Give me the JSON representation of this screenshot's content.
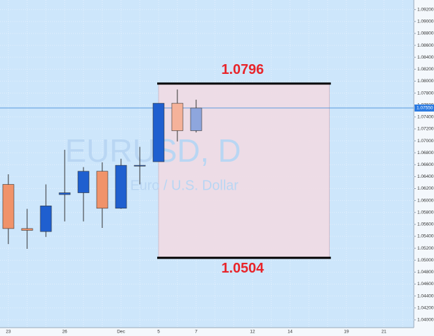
{
  "chart_data": {
    "type": "candlestick",
    "watermark": "EURUSD, D",
    "watermark_sub": "Euro / U.S. Dollar",
    "categories": [
      "23",
      null,
      null,
      "26",
      null,
      null,
      "Dec",
      null,
      "5",
      null,
      "7",
      null,
      null,
      "12",
      null,
      "14",
      null,
      null,
      "19",
      null,
      "21",
      null
    ],
    "open": [
      1.0627,
      1.0553,
      1.0548,
      1.0613,
      1.0613,
      1.0649,
      1.0587,
      1.0659,
      1.0665,
      1.0763,
      1.0717,
      null,
      null,
      null,
      null,
      null,
      null,
      null,
      null,
      null,
      null,
      null
    ],
    "high": [
      1.0644,
      1.0586,
      1.0627,
      1.0685,
      1.0656,
      1.0664,
      1.067,
      1.069,
      1.0763,
      1.0786,
      1.0769,
      null,
      null,
      null,
      null,
      null,
      null,
      null,
      null,
      null,
      null,
      null
    ],
    "low": [
      1.0527,
      1.0519,
      1.0539,
      1.0565,
      1.0565,
      1.0554,
      1.0586,
      1.0627,
      1.0665,
      1.0699,
      1.0714,
      null,
      null,
      null,
      null,
      null,
      null,
      null,
      null,
      null,
      null,
      null
    ],
    "close": [
      1.0553,
      1.055,
      1.0591,
      1.061,
      1.0649,
      1.0587,
      1.0659,
      1.0659,
      1.0763,
      1.0717,
      1.0755,
      null,
      null,
      null,
      null,
      null,
      null,
      null,
      null,
      null,
      null,
      null
    ],
    "colors": [
      "#f0936a",
      "#f0936a",
      "#1f5fcf",
      "#1f5fcf",
      "#1f5fcf",
      "#f0936a",
      "#1f5fcf",
      "#1f5fcf",
      "#1f5fcf",
      "#f5b29a",
      "#8ea6dd",
      null,
      null,
      null,
      null,
      null,
      null,
      null,
      null,
      null,
      null,
      null
    ],
    "levels": [
      1.0796,
      1.0504
    ],
    "level_color": "#e8242a",
    "zone_color": "#f2d9e2",
    "current_price": {
      "value": 1.0755,
      "label": "1.07550"
    },
    "ylim": [
      1.0387,
      1.0936
    ],
    "yticks": [
      {
        "value": 1.04,
        "label": "1.04000"
      },
      {
        "value": 1.042,
        "label": "1.04200"
      },
      {
        "value": 1.044,
        "label": "1.04400"
      },
      {
        "value": 1.046,
        "label": "1.04600"
      },
      {
        "value": 1.048,
        "label": "1.04800"
      },
      {
        "value": 1.05,
        "label": "1.05000"
      },
      {
        "value": 1.052,
        "label": "1.05200"
      },
      {
        "value": 1.054,
        "label": "1.05400"
      },
      {
        "value": 1.056,
        "label": "1.05600"
      },
      {
        "value": 1.058,
        "label": "1.05800"
      },
      {
        "value": 1.06,
        "label": "1.06000"
      },
      {
        "value": 1.062,
        "label": "1.06200"
      },
      {
        "value": 1.064,
        "label": "1.06400"
      },
      {
        "value": 1.066,
        "label": "1.06600"
      },
      {
        "value": 1.068,
        "label": "1.06800"
      },
      {
        "value": 1.07,
        "label": "1.07000"
      },
      {
        "value": 1.072,
        "label": "1.07200"
      },
      {
        "value": 1.074,
        "label": "1.07400"
      },
      {
        "value": 1.076,
        "label": "1.07600"
      },
      {
        "value": 1.078,
        "label": "1.07800"
      },
      {
        "value": 1.08,
        "label": "1.08000"
      },
      {
        "value": 1.082,
        "label": "1.08200"
      },
      {
        "value": 1.084,
        "label": "1.08400"
      },
      {
        "value": 1.086,
        "label": "1.08600"
      },
      {
        "value": 1.088,
        "label": "1.08800"
      },
      {
        "value": 1.09,
        "label": "1.09000"
      },
      {
        "value": 1.092,
        "label": "1.09200"
      }
    ],
    "grid": true
  }
}
